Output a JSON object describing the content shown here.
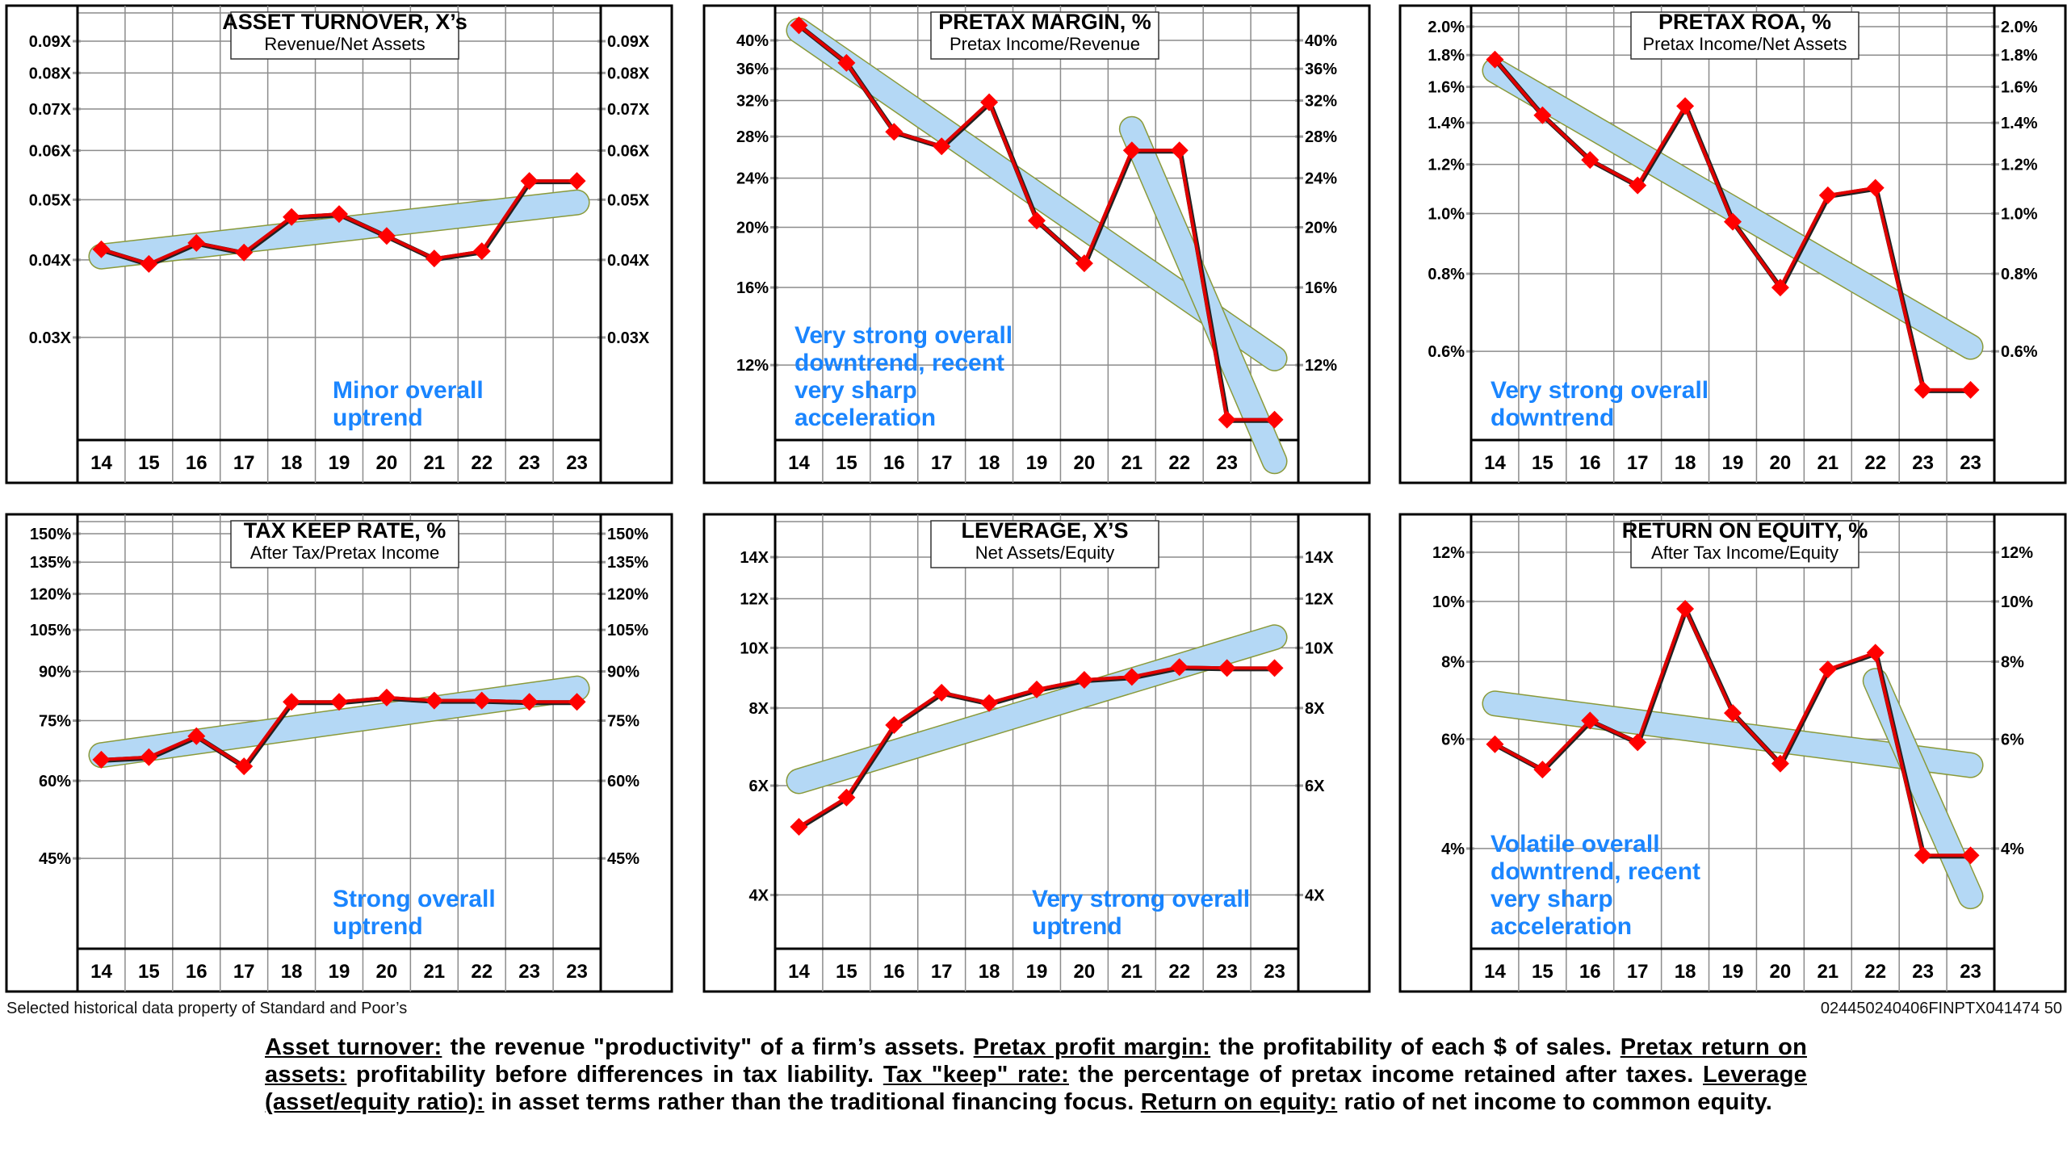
{
  "footer": {
    "credit": "Selected historical data property of Standard and Poor’s",
    "code": "024450240406FINPTX041474  50",
    "glossary": [
      {
        "term": "Asset turnover:",
        "text": " the revenue \"productivity\" of a firm’s assets. "
      },
      {
        "term": "Pretax profit margin:",
        "text": " the profitability of each $ of sales. "
      },
      {
        "term": "Pretax return on assets:",
        "text": " profitability before differences in tax liability. "
      },
      {
        "term": "Tax \"keep\" rate:",
        "text": " the percentage of pretax income retained after taxes. "
      },
      {
        "term": "Leverage (asset/equity ratio):",
        "text": " in asset terms rather than the traditional financing focus. "
      },
      {
        "term": "Return on equity:",
        "text": " ratio of net income to common equity."
      }
    ]
  },
  "colors": {
    "line": "#e00000",
    "marker": "#ff0000",
    "trend_fill": "#b4d8f5",
    "trend_stroke": "#8a9a3a",
    "annotation": "#1a85ff",
    "grid": "#8c8c8c"
  },
  "chart_data": [
    {
      "type": "line",
      "title": "ASSET TURNOVER, X’s",
      "subtitle": "Revenue/Net Assets",
      "yscale": "log",
      "categories": [
        "14",
        "15",
        "16",
        "17",
        "18",
        "19",
        "20",
        "21",
        "22",
        "23",
        "23"
      ],
      "yticks": [
        0.09,
        0.08,
        0.07,
        0.06,
        0.05,
        0.04,
        0.03
      ],
      "ytick_labels": [
        "0.09X",
        "0.08X",
        "0.07X",
        "0.06X",
        "0.05X",
        "0.04X",
        "0.03X"
      ],
      "series": [
        {
          "name": "Asset turnover",
          "values": [
            0.0416,
            0.0394,
            0.0426,
            0.0411,
            0.0469,
            0.0474,
            0.0437,
            0.0402,
            0.0413,
            0.0536,
            0.0536
          ]
        }
      ],
      "trendlines": [
        {
          "from": [
            0,
            0.0405
          ],
          "to": [
            10,
            0.0495
          ]
        }
      ],
      "annotation": [
        "Minor overall",
        "uptrend"
      ],
      "annotation_position": "bottom-center"
    },
    {
      "type": "line",
      "title": "PRETAX MARGIN, %",
      "subtitle": "Pretax Income/Revenue",
      "yscale": "log",
      "categories": [
        "14",
        "15",
        "16",
        "17",
        "18",
        "19",
        "20",
        "21",
        "22",
        "23",
        "23"
      ],
      "yticks": [
        40,
        36,
        32,
        28,
        24,
        20,
        16,
        12
      ],
      "ytick_labels": [
        "40%",
        "36%",
        "32%",
        "28%",
        "24%",
        "20%",
        "16%",
        "12%"
      ],
      "series": [
        {
          "name": "Pretax margin",
          "values": [
            42.3,
            36.8,
            28.5,
            27.0,
            31.8,
            20.5,
            17.5,
            26.6,
            26.6,
            9.8,
            9.8
          ]
        }
      ],
      "trendlines": [
        {
          "from": [
            0,
            41.5
          ],
          "to": [
            10,
            12.3
          ]
        },
        {
          "from": [
            7,
            28.8
          ],
          "to": [
            10,
            8.4
          ]
        }
      ],
      "annotation": [
        "Very strong overall",
        "downtrend, recent",
        "very sharp",
        "acceleration"
      ],
      "annotation_position": "bottom-left"
    },
    {
      "type": "line",
      "title": "PRETAX ROA, %",
      "subtitle": "Pretax Income/Net Assets",
      "yscale": "log",
      "categories": [
        "14",
        "15",
        "16",
        "17",
        "18",
        "19",
        "20",
        "21",
        "22",
        "23",
        "23"
      ],
      "yticks": [
        2.0,
        1.8,
        1.6,
        1.4,
        1.2,
        1.0,
        0.8,
        0.6
      ],
      "ytick_labels": [
        "2.0%",
        "1.8%",
        "1.6%",
        "1.4%",
        "1.2%",
        "1.0%",
        "0.8%",
        "0.6%"
      ],
      "series": [
        {
          "name": "Pretax ROA",
          "values": [
            1.77,
            1.44,
            1.22,
            1.11,
            1.49,
            0.97,
            0.76,
            1.07,
            1.1,
            0.52,
            0.52
          ]
        }
      ],
      "trendlines": [
        {
          "from": [
            0,
            1.7
          ],
          "to": [
            10,
            0.61
          ]
        }
      ],
      "annotation": [
        "Very strong overall",
        "downtrend"
      ],
      "annotation_position": "bottom-left"
    },
    {
      "type": "line",
      "title": "TAX KEEP RATE, %",
      "subtitle": "After Tax/Pretax Income",
      "yscale": "log",
      "categories": [
        "14",
        "15",
        "16",
        "17",
        "18",
        "19",
        "20",
        "21",
        "22",
        "23",
        "23"
      ],
      "yticks": [
        150,
        135,
        120,
        105,
        90,
        75,
        60,
        45
      ],
      "ytick_labels": [
        "150%",
        "135%",
        "120%",
        "105%",
        "90%",
        "75%",
        "60%",
        "45%"
      ],
      "series": [
        {
          "name": "Tax keep rate",
          "values": [
            64.9,
            65.5,
            70.8,
            63.3,
            80.4,
            80.4,
            81.7,
            80.8,
            80.8,
            80.4,
            80.4
          ]
        }
      ],
      "trendlines": [
        {
          "from": [
            0,
            66.0
          ],
          "to": [
            10,
            84.5
          ]
        }
      ],
      "annotation": [
        "Strong overall",
        "uptrend"
      ],
      "annotation_position": "bottom-center"
    },
    {
      "type": "line",
      "title": "LEVERAGE, X’S",
      "subtitle": "Net Assets/Equity",
      "yscale": "log",
      "categories": [
        "14",
        "15",
        "16",
        "17",
        "18",
        "19",
        "20",
        "21",
        "22",
        "23",
        "23"
      ],
      "yticks": [
        14,
        12,
        10,
        8,
        6,
        4
      ],
      "ytick_labels": [
        "14X",
        "12X",
        "10X",
        "8X",
        "6X",
        "4X"
      ],
      "series": [
        {
          "name": "Leverage",
          "values": [
            5.15,
            5.74,
            7.51,
            8.47,
            8.15,
            8.57,
            8.88,
            8.98,
            9.31,
            9.28,
            9.28
          ]
        }
      ],
      "trendlines": [
        {
          "from": [
            0,
            6.1
          ],
          "to": [
            10,
            10.4
          ]
        }
      ],
      "annotation": [
        "Very strong overall",
        "uptrend"
      ],
      "annotation_position": "bottom-right"
    },
    {
      "type": "line",
      "title": "RETURN ON EQUITY, %",
      "subtitle": "After Tax Income/Equity",
      "yscale": "log",
      "categories": [
        "14",
        "15",
        "16",
        "17",
        "18",
        "19",
        "20",
        "21",
        "22",
        "23",
        "23"
      ],
      "yticks": [
        12,
        10,
        8,
        6,
        4
      ],
      "ytick_labels": [
        "12%",
        "10%",
        "8%",
        "6%",
        "4%"
      ],
      "series": [
        {
          "name": "Return on equity",
          "values": [
            5.89,
            5.36,
            6.43,
            5.93,
            9.73,
            6.61,
            5.48,
            7.77,
            8.27,
            3.9,
            3.9
          ]
        }
      ],
      "trendlines": [
        {
          "from": [
            0,
            6.85
          ],
          "to": [
            10,
            5.45
          ]
        },
        {
          "from": [
            8,
            7.45
          ],
          "to": [
            10,
            3.35
          ]
        }
      ],
      "annotation": [
        "Volatile overall",
        "downtrend, recent",
        "very sharp",
        "acceleration"
      ],
      "annotation_position": "bottom-left"
    }
  ]
}
